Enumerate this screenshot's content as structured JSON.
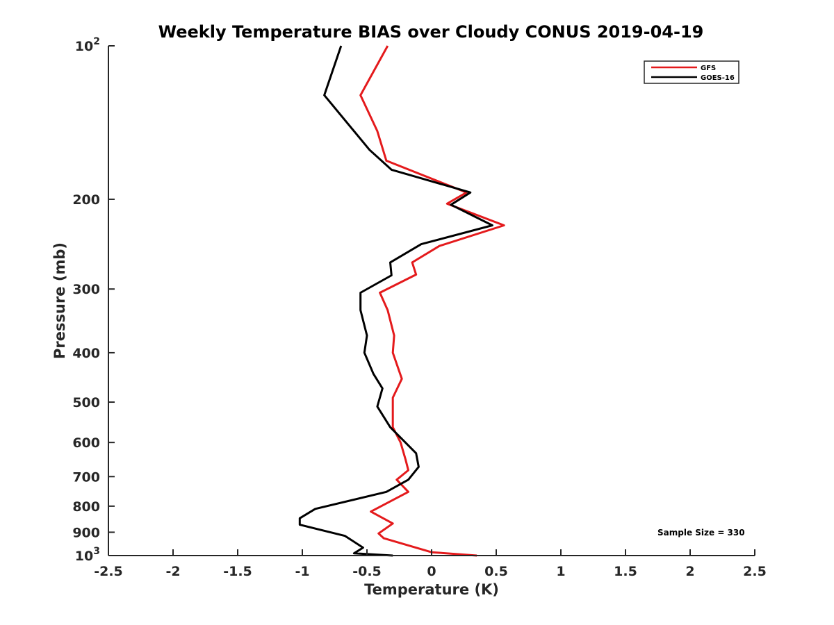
{
  "chart_data": {
    "type": "line",
    "title": "Weekly Temperature BIAS over Cloudy CONUS 2019-04-19",
    "xlabel": "Temperature (K)",
    "ylabel": "Pressure (mb)",
    "xlim": [
      -2.5,
      2.5
    ],
    "ylim": [
      1000,
      100
    ],
    "y_scale": "log",
    "y_reversed": true,
    "grid": false,
    "x_ticks": [
      -2.5,
      -2,
      -1.5,
      -1,
      -0.5,
      0,
      0.5,
      1,
      1.5,
      2,
      2.5
    ],
    "x_tick_labels": [
      "-2.5",
      "-2",
      "-1.5",
      "-1",
      "-0.5",
      "0",
      "0.5",
      "1",
      "1.5",
      "2",
      "2.5"
    ],
    "y_ticks": [
      {
        "value": 100,
        "base": "10",
        "exp": "2"
      },
      {
        "value": 200,
        "label": "200"
      },
      {
        "value": 300,
        "label": "300"
      },
      {
        "value": 400,
        "label": "400"
      },
      {
        "value": 500,
        "label": "500"
      },
      {
        "value": 600,
        "label": "600"
      },
      {
        "value": 700,
        "label": "700"
      },
      {
        "value": 800,
        "label": "800"
      },
      {
        "value": 900,
        "label": "900"
      },
      {
        "value": 1000,
        "base": "10",
        "exp": "3"
      }
    ],
    "legend_position": "top-right",
    "annotation": "Sample Size = 330",
    "series": [
      {
        "name": "GFS",
        "color": "#e41a1c",
        "points": [
          [
            -0.34,
            100
          ],
          [
            -0.55,
            125
          ],
          [
            -0.42,
            147
          ],
          [
            -0.35,
            168
          ],
          [
            0.27,
            194
          ],
          [
            0.12,
            204
          ],
          [
            0.56,
            225
          ],
          [
            0.06,
            247
          ],
          [
            -0.15,
            266
          ],
          [
            -0.12,
            281
          ],
          [
            -0.4,
            305
          ],
          [
            -0.34,
            330
          ],
          [
            -0.29,
            370
          ],
          [
            -0.3,
            400
          ],
          [
            -0.23,
            450
          ],
          [
            -0.3,
            490
          ],
          [
            -0.3,
            560
          ],
          [
            -0.24,
            600
          ],
          [
            -0.2,
            650
          ],
          [
            -0.18,
            680
          ],
          [
            -0.27,
            710
          ],
          [
            -0.18,
            750
          ],
          [
            -0.47,
            820
          ],
          [
            -0.3,
            865
          ],
          [
            -0.41,
            905
          ],
          [
            -0.37,
            925
          ],
          [
            0.0,
            985
          ],
          [
            0.35,
            1000
          ]
        ]
      },
      {
        "name": "GOES-16",
        "color": "#000000",
        "points": [
          [
            -0.7,
            100
          ],
          [
            -0.83,
            125
          ],
          [
            -0.48,
            160
          ],
          [
            -0.31,
            175
          ],
          [
            0.3,
            194
          ],
          [
            0.15,
            205
          ],
          [
            0.47,
            225
          ],
          [
            -0.08,
            245
          ],
          [
            -0.32,
            266
          ],
          [
            -0.31,
            282
          ],
          [
            -0.55,
            305
          ],
          [
            -0.55,
            330
          ],
          [
            -0.5,
            370
          ],
          [
            -0.52,
            400
          ],
          [
            -0.45,
            440
          ],
          [
            -0.38,
            470
          ],
          [
            -0.42,
            510
          ],
          [
            -0.32,
            560
          ],
          [
            -0.12,
            630
          ],
          [
            -0.1,
            670
          ],
          [
            -0.18,
            710
          ],
          [
            -0.35,
            750
          ],
          [
            -0.9,
            810
          ],
          [
            -1.02,
            845
          ],
          [
            -1.02,
            870
          ],
          [
            -0.67,
            915
          ],
          [
            -0.53,
            965
          ],
          [
            -0.6,
            990
          ],
          [
            -0.3,
            1000
          ]
        ]
      }
    ]
  }
}
